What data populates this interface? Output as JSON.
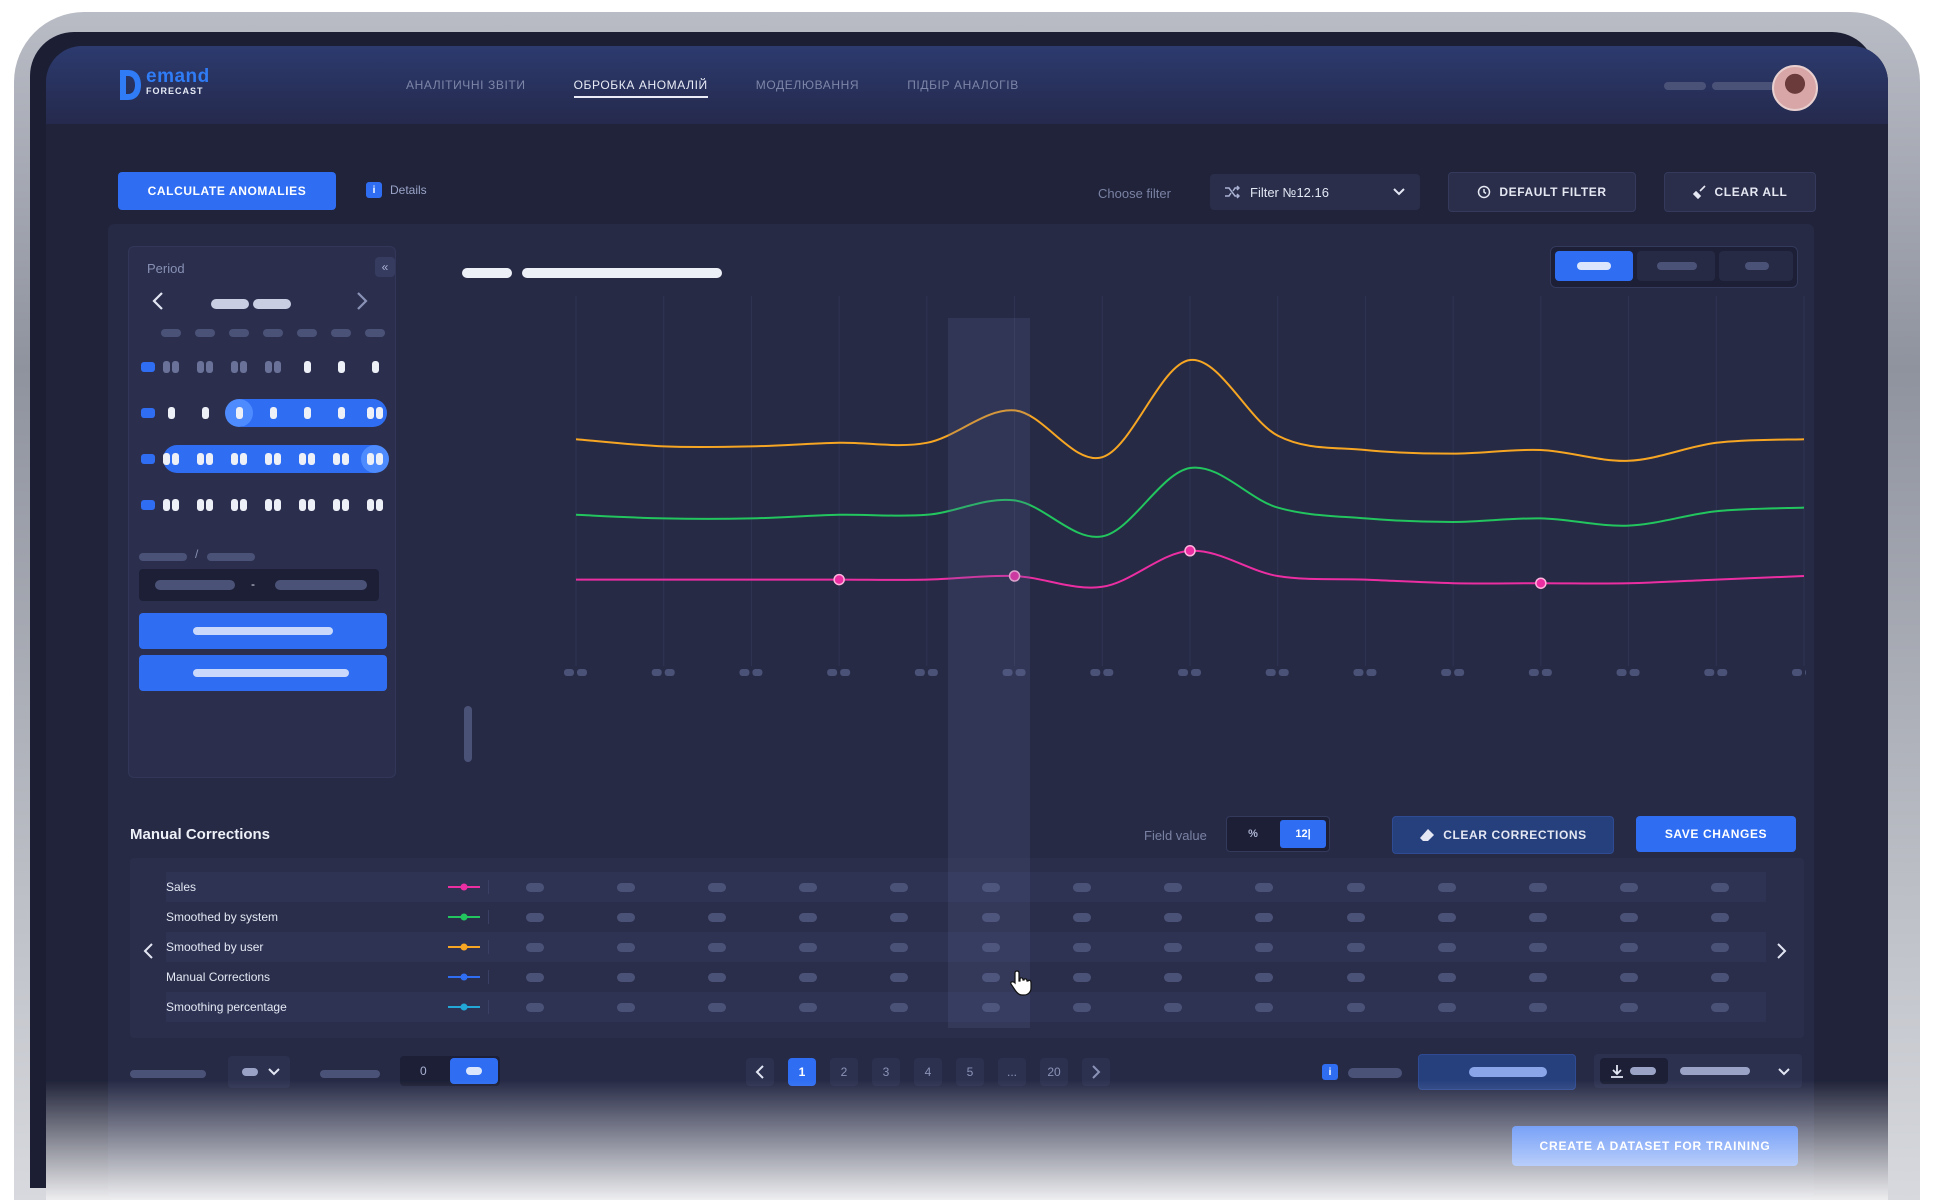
{
  "app": {
    "logo_main": "emand",
    "logo_sub": "FORECAST"
  },
  "nav": [
    {
      "label": "АНАЛІТИЧНІ ЗВІТИ",
      "active": false
    },
    {
      "label": "ОБРОБКА АНОМАЛІЙ",
      "active": true
    },
    {
      "label": "МОДЕЛЮВАННЯ",
      "active": false
    },
    {
      "label": "ПІДБІР АНАЛОГІВ",
      "active": false
    }
  ],
  "toolbar": {
    "calculate_label": "CALCULATE ANOMALIES",
    "details_label": "Details",
    "info_glyph": "i",
    "choose_filter_label": "Choose filter",
    "filter_value": "Filter №12.16",
    "default_filter_label": "DEFAULT FILTER",
    "clear_all_label": "CLEAR ALL"
  },
  "calendar": {
    "title": "Period",
    "collapse_glyph": "«",
    "date_separator": "/",
    "range_separator": "-"
  },
  "chart_data": {
    "type": "line",
    "title": "",
    "xlabel": "",
    "ylabel": "",
    "highlighted_index": 5,
    "ylim": [
      0,
      100
    ],
    "series": [
      {
        "color": "#f6a623",
        "values": [
          63,
          61,
          61,
          62,
          62,
          71,
          58,
          85,
          64,
          60,
          59,
          60,
          57,
          62,
          63
        ]
      },
      {
        "color": "#22c55e",
        "values": [
          42,
          41,
          41,
          42,
          42,
          46,
          36,
          55,
          44,
          41,
          40,
          41,
          39,
          43,
          44
        ]
      },
      {
        "color": "#ec2ea3",
        "values": [
          24,
          24,
          24,
          24,
          24,
          25,
          22,
          32,
          25,
          24,
          23,
          23,
          23,
          24,
          25
        ],
        "markers": [
          3,
          5,
          7,
          11
        ]
      }
    ]
  },
  "corrections": {
    "title": "Manual Corrections",
    "field_value_label": "Field value",
    "field_opt_percent": "%",
    "field_opt_value": "12|",
    "clear_corrections_label": "CLEAR CORRECTIONS",
    "save_changes_label": "SAVE CHANGES",
    "rows": [
      {
        "label": "Sales",
        "color": "#ec2ea3"
      },
      {
        "label": "Smoothed by system",
        "color": "#22c55e"
      },
      {
        "label": "Smoothed by user",
        "color": "#f6a623"
      },
      {
        "label": "Manual Corrections",
        "color": "#2f6ef3"
      },
      {
        "label": "Smoothing percentage",
        "color": "#22a7d6"
      }
    ]
  },
  "bottom": {
    "toggle_zero": "0",
    "pages": [
      "1",
      "2",
      "3",
      "4",
      "5",
      "...",
      "20"
    ],
    "current_page": "1",
    "create_dataset_label": "CREATE A DATASET FOR TRAINING"
  }
}
